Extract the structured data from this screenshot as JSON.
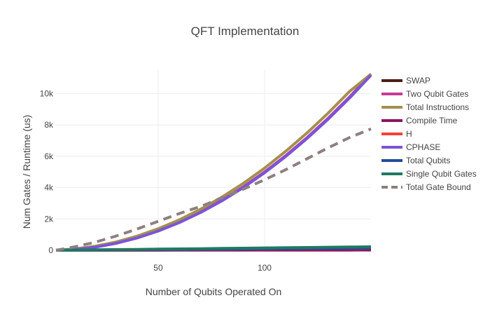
{
  "chart_data": {
    "type": "line",
    "title": "QFT Implementation",
    "xlabel": "Number of Qubits Operated On",
    "ylabel": "Num Gates / Runtime (us)",
    "xlim": [
      2,
      150
    ],
    "ylim": [
      0,
      11500
    ],
    "xticks": [
      50,
      100
    ],
    "xtick_labels": [
      "50",
      "100"
    ],
    "yticks": [
      0,
      2000,
      4000,
      6000,
      8000,
      10000
    ],
    "ytick_labels": [
      "0",
      "2k",
      "4k",
      "6k",
      "8k",
      "10k"
    ],
    "grid": true,
    "legend_position": "right",
    "x": [
      2,
      10,
      20,
      30,
      40,
      50,
      60,
      70,
      80,
      90,
      100,
      110,
      120,
      130,
      140,
      150
    ],
    "series": [
      {
        "name": "SWAP",
        "color": "#4a1f16",
        "dash": "solid",
        "values": [
          1,
          5,
          10,
          15,
          20,
          25,
          30,
          35,
          40,
          45,
          50,
          55,
          60,
          65,
          70,
          75
        ]
      },
      {
        "name": "Two Qubit Gates",
        "color": "#c6399a",
        "dash": "solid",
        "values": [
          2,
          50,
          200,
          450,
          800,
          1250,
          1800,
          2450,
          3200,
          4050,
          5000,
          6050,
          7200,
          8450,
          9800,
          11250
        ]
      },
      {
        "name": "Total Instructions",
        "color": "#a3904f",
        "dash": "solid",
        "values": [
          7,
          75,
          250,
          525,
          900,
          1375,
          1950,
          2625,
          3400,
          4275,
          5250,
          6325,
          7500,
          8775,
          10150,
          11250
        ]
      },
      {
        "name": "Compile Time",
        "color": "#8c1563",
        "dash": "solid",
        "values": [
          1,
          2,
          3,
          4,
          5,
          6,
          7,
          8,
          9,
          10,
          11,
          12,
          13,
          14,
          15,
          16
        ]
      },
      {
        "name": "H",
        "color": "#f44336",
        "dash": "solid",
        "values": [
          2,
          10,
          20,
          30,
          40,
          50,
          60,
          70,
          80,
          90,
          100,
          110,
          120,
          130,
          140,
          150
        ]
      },
      {
        "name": "CPHASE",
        "color": "#7b54d8",
        "dash": "solid",
        "values": [
          1,
          45,
          190,
          435,
          780,
          1225,
          1770,
          2415,
          3160,
          4005,
          4950,
          5995,
          7140,
          8385,
          9730,
          11175
        ]
      },
      {
        "name": "Total Qubits",
        "color": "#244a9b",
        "dash": "solid",
        "values": [
          2,
          10,
          20,
          30,
          40,
          50,
          60,
          70,
          80,
          90,
          100,
          110,
          120,
          130,
          140,
          150
        ]
      },
      {
        "name": "Single Qubit Gates",
        "color": "#1e7a62",
        "dash": "solid",
        "values": [
          3,
          15,
          30,
          45,
          60,
          75,
          90,
          105,
          120,
          135,
          150,
          165,
          180,
          195,
          210,
          225
        ]
      },
      {
        "name": "Total Gate Bound",
        "color": "#8f7f80",
        "dash": "dash",
        "values": [
          2,
          200,
          500,
          900,
          1350,
          1850,
          2350,
          2800,
          3350,
          3900,
          4500,
          5150,
          5850,
          6550,
          7200,
          7750
        ]
      }
    ]
  }
}
